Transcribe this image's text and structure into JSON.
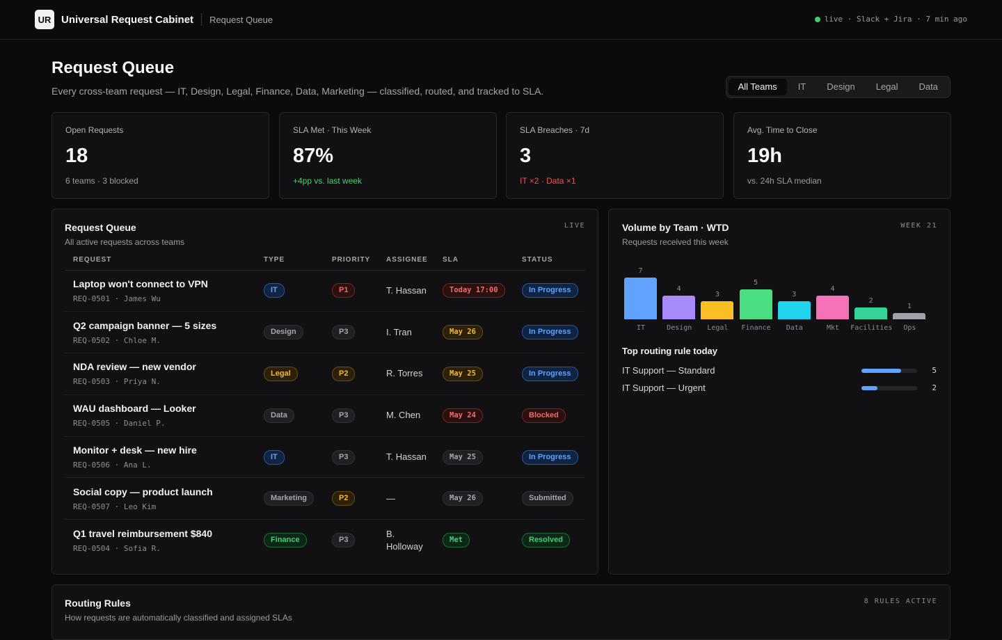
{
  "app": {
    "logo": "UR",
    "title": "Universal Request Cabinet",
    "breadcrumb": "Request Queue",
    "status": "live · Slack + Jira · 7 min ago"
  },
  "header": {
    "title": "Request Queue",
    "subtitle": "Every cross-team request — IT, Design, Legal, Finance, Data, Marketing — classified, routed, and tracked to SLA.",
    "tabs": [
      "All Teams",
      "IT",
      "Design",
      "Legal",
      "Data"
    ],
    "active_tab": "All Teams"
  },
  "kpis": [
    {
      "label": "Open Requests",
      "value": "18",
      "note": "6 teams · 3 blocked",
      "tone": "neutral"
    },
    {
      "label": "SLA Met · This Week",
      "value": "87%",
      "note": "+4pp vs. last week",
      "tone": "good"
    },
    {
      "label": "SLA Breaches · 7d",
      "value": "3",
      "note": "IT ×2 · Data ×1",
      "tone": "bad"
    },
    {
      "label": "Avg. Time to Close",
      "value": "19h",
      "note": "vs. 24h SLA median",
      "tone": "neutral"
    }
  ],
  "queue": {
    "title": "Request Queue",
    "subtitle": "All active requests across teams",
    "tag": "LIVE",
    "columns": [
      "REQUEST",
      "TYPE",
      "PRIORITY",
      "ASSIGNEE",
      "SLA",
      "STATUS"
    ],
    "rows": [
      {
        "title": "Laptop won't connect to VPN",
        "meta": "REQ-0501 · James Wu",
        "type": "IT",
        "type_color": "blue",
        "priority": "P1",
        "priority_color": "red",
        "assignee": "T. Hassan",
        "sla": "Today 17:00",
        "sla_color": "red",
        "status": "In Progress",
        "status_color": "blue"
      },
      {
        "title": "Q2 campaign banner — 5 sizes",
        "meta": "REQ-0502 · Chloe M.",
        "type": "Design",
        "type_color": "gray",
        "priority": "P3",
        "priority_color": "gray",
        "assignee": "I. Tran",
        "sla": "May 26",
        "sla_color": "amber",
        "status": "In Progress",
        "status_color": "blue"
      },
      {
        "title": "NDA review — new vendor",
        "meta": "REQ-0503 · Priya N.",
        "type": "Legal",
        "type_color": "amber",
        "priority": "P2",
        "priority_color": "amber",
        "assignee": "R. Torres",
        "sla": "May 25",
        "sla_color": "amber",
        "status": "In Progress",
        "status_color": "blue"
      },
      {
        "title": "WAU dashboard — Looker",
        "meta": "REQ-0505 · Daniel P.",
        "type": "Data",
        "type_color": "gray",
        "priority": "P3",
        "priority_color": "gray",
        "assignee": "M. Chen",
        "sla": "May 24",
        "sla_color": "red",
        "status": "Blocked",
        "status_color": "red"
      },
      {
        "title": "Monitor + desk — new hire",
        "meta": "REQ-0506 · Ana L.",
        "type": "IT",
        "type_color": "blue",
        "priority": "P3",
        "priority_color": "gray",
        "assignee": "T. Hassan",
        "sla": "May 25",
        "sla_color": "gray",
        "status": "In Progress",
        "status_color": "blue"
      },
      {
        "title": "Social copy — product launch",
        "meta": "REQ-0507 · Leo Kim",
        "type": "Marketing",
        "type_color": "gray",
        "priority": "P2",
        "priority_color": "amber",
        "assignee": "—",
        "sla": "May 26",
        "sla_color": "gray",
        "status": "Submitted",
        "status_color": "gray"
      },
      {
        "title": "Q1 travel reimbursement $840",
        "meta": "REQ-0504 · Sofia R.",
        "type": "Finance",
        "type_color": "green",
        "priority": "P3",
        "priority_color": "gray",
        "assignee": "B. Holloway",
        "sla": "Met",
        "sla_color": "green",
        "status": "Resolved",
        "status_color": "green"
      }
    ]
  },
  "volume": {
    "title": "Volume by Team · WTD",
    "subtitle": "Requests received this week",
    "tag": "WEEK 21",
    "chart_data": {
      "type": "bar",
      "categories": [
        "IT",
        "Design",
        "Legal",
        "Finance",
        "Data",
        "Mkt",
        "Facilities",
        "Ops"
      ],
      "values": [
        7,
        4,
        3,
        5,
        3,
        4,
        2,
        1
      ],
      "colors": [
        "#5fa3ff",
        "#a78bfa",
        "#fbbf24",
        "#4ade80",
        "#22d3ee",
        "#f472b6",
        "#34d399",
        "#a1a1aa"
      ],
      "ylim": [
        0,
        7
      ]
    },
    "rules_title": "Top routing rule today",
    "rules": [
      {
        "name": "IT Support — Standard",
        "count": 5,
        "max": 7
      },
      {
        "name": "IT Support — Urgent",
        "count": 2,
        "max": 7
      }
    ]
  },
  "routing": {
    "title": "Routing Rules",
    "subtitle": "How requests are automatically classified and assigned SLAs",
    "tag": "8 RULES ACTIVE"
  }
}
